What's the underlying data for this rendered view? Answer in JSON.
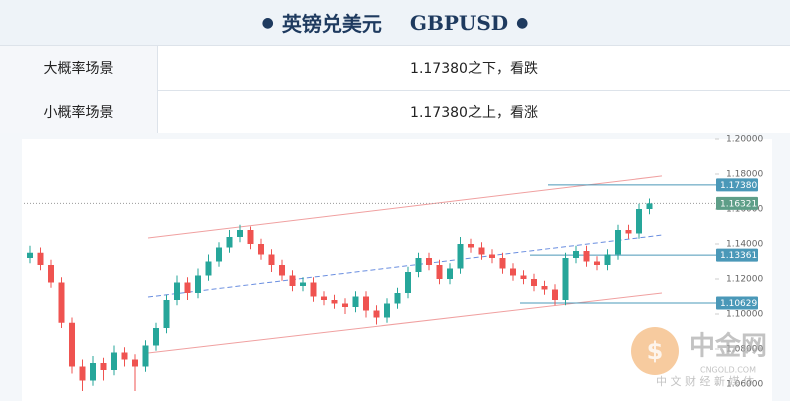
{
  "header": {
    "title_cn": "英镑兑美元",
    "title_en": "GBPUSD"
  },
  "table": {
    "rows": [
      [
        "大概率场景",
        "1.17380之下，看跌"
      ],
      [
        "小概率场景",
        "1.17380之上，看涨"
      ]
    ]
  },
  "watermark": {
    "name": "中金网",
    "domain": "CNGOLD.COM",
    "slogan": "中 文 财 经 新 媒 体"
  },
  "chart_data": {
    "type": "candlestick",
    "up_color": "#26a69a",
    "down_color": "#ef5350",
    "open": [
      1.132,
      1.135,
      1.128,
      1.118,
      1.095,
      1.07,
      1.062,
      1.072,
      1.068,
      1.078,
      1.074,
      1.07,
      1.082,
      1.092,
      1.108,
      1.118,
      1.112,
      1.122,
      1.13,
      1.138,
      1.144,
      1.148,
      1.14,
      1.134,
      1.128,
      1.122,
      1.116,
      1.118,
      1.11,
      1.108,
      1.106,
      1.104,
      1.11,
      1.102,
      1.098,
      1.106,
      1.112,
      1.124,
      1.132,
      1.128,
      1.12,
      1.126,
      1.14,
      1.138,
      1.134,
      1.132,
      1.126,
      1.122,
      1.12,
      1.116,
      1.114,
      1.108,
      1.132,
      1.136,
      1.13,
      1.128,
      1.134,
      1.148,
      1.146,
      1.16
    ],
    "high": [
      1.139,
      1.138,
      1.131,
      1.121,
      1.098,
      1.074,
      1.076,
      1.075,
      1.082,
      1.081,
      1.077,
      1.085,
      1.095,
      1.111,
      1.122,
      1.121,
      1.126,
      1.134,
      1.141,
      1.148,
      1.151,
      1.15,
      1.143,
      1.137,
      1.131,
      1.125,
      1.121,
      1.121,
      1.113,
      1.111,
      1.109,
      1.113,
      1.113,
      1.105,
      1.109,
      1.115,
      1.127,
      1.135,
      1.135,
      1.131,
      1.129,
      1.144,
      1.143,
      1.141,
      1.137,
      1.135,
      1.129,
      1.125,
      1.123,
      1.119,
      1.117,
      1.135,
      1.139,
      1.139,
      1.133,
      1.137,
      1.151,
      1.151,
      1.163,
      1.166
    ],
    "low": [
      1.129,
      1.125,
      1.115,
      1.092,
      1.066,
      1.056,
      1.059,
      1.062,
      1.065,
      1.07,
      1.056,
      1.067,
      1.079,
      1.089,
      1.105,
      1.108,
      1.109,
      1.119,
      1.127,
      1.135,
      1.141,
      1.137,
      1.131,
      1.124,
      1.119,
      1.113,
      1.113,
      1.107,
      1.105,
      1.103,
      1.1,
      1.101,
      1.098,
      1.094,
      1.095,
      1.103,
      1.109,
      1.121,
      1.125,
      1.117,
      1.117,
      1.123,
      1.135,
      1.131,
      1.129,
      1.123,
      1.119,
      1.117,
      1.113,
      1.111,
      1.105,
      1.105,
      1.129,
      1.127,
      1.125,
      1.125,
      1.131,
      1.143,
      1.143,
      1.157
    ],
    "close": [
      1.135,
      1.128,
      1.118,
      1.095,
      1.07,
      1.062,
      1.072,
      1.068,
      1.078,
      1.074,
      1.07,
      1.082,
      1.092,
      1.108,
      1.118,
      1.112,
      1.122,
      1.13,
      1.138,
      1.144,
      1.148,
      1.14,
      1.134,
      1.128,
      1.122,
      1.116,
      1.118,
      1.11,
      1.108,
      1.106,
      1.104,
      1.11,
      1.102,
      1.098,
      1.106,
      1.112,
      1.124,
      1.132,
      1.128,
      1.12,
      1.126,
      1.14,
      1.138,
      1.134,
      1.132,
      1.126,
      1.122,
      1.12,
      1.116,
      1.114,
      1.108,
      1.132,
      1.136,
      1.13,
      1.128,
      1.134,
      1.148,
      1.146,
      1.16,
      1.1632
    ],
    "ylim": [
      1.052,
      1.2
    ],
    "yticks": [
      {
        "value": 1.2,
        "label": "1.20000"
      },
      {
        "value": 1.18,
        "label": "1.18000"
      },
      {
        "value": 1.16,
        "label": "1.16000"
      },
      {
        "value": 1.14,
        "label": "1.14000"
      },
      {
        "value": 1.12,
        "label": "1.12000"
      },
      {
        "value": 1.1,
        "label": "1.10000"
      },
      {
        "value": 1.08,
        "label": "1.08000"
      },
      {
        "value": 1.06,
        "label": "1.06000"
      }
    ],
    "price_lines": [
      {
        "value": 1.1738,
        "label": "1.17380",
        "color": "#4a98b8"
      },
      {
        "value": 1.16321,
        "label": "1.16321",
        "color": "#5e9e88"
      },
      {
        "value": 1.13361,
        "label": "1.13361",
        "color": "#4a98b8"
      },
      {
        "value": 1.10629,
        "label": "1.10629",
        "color": "#4a98b8"
      }
    ],
    "channel_lines": [
      {
        "color": "#f0a0a0",
        "dashed": false,
        "values": [
          1.1434,
          1.1789
        ]
      },
      {
        "color": "#6a8ee0",
        "dashed": true,
        "values": [
          1.1097,
          1.1451
        ]
      },
      {
        "color": "#f0a0a0",
        "dashed": false,
        "values": [
          1.0777,
          1.112
        ]
      }
    ]
  }
}
